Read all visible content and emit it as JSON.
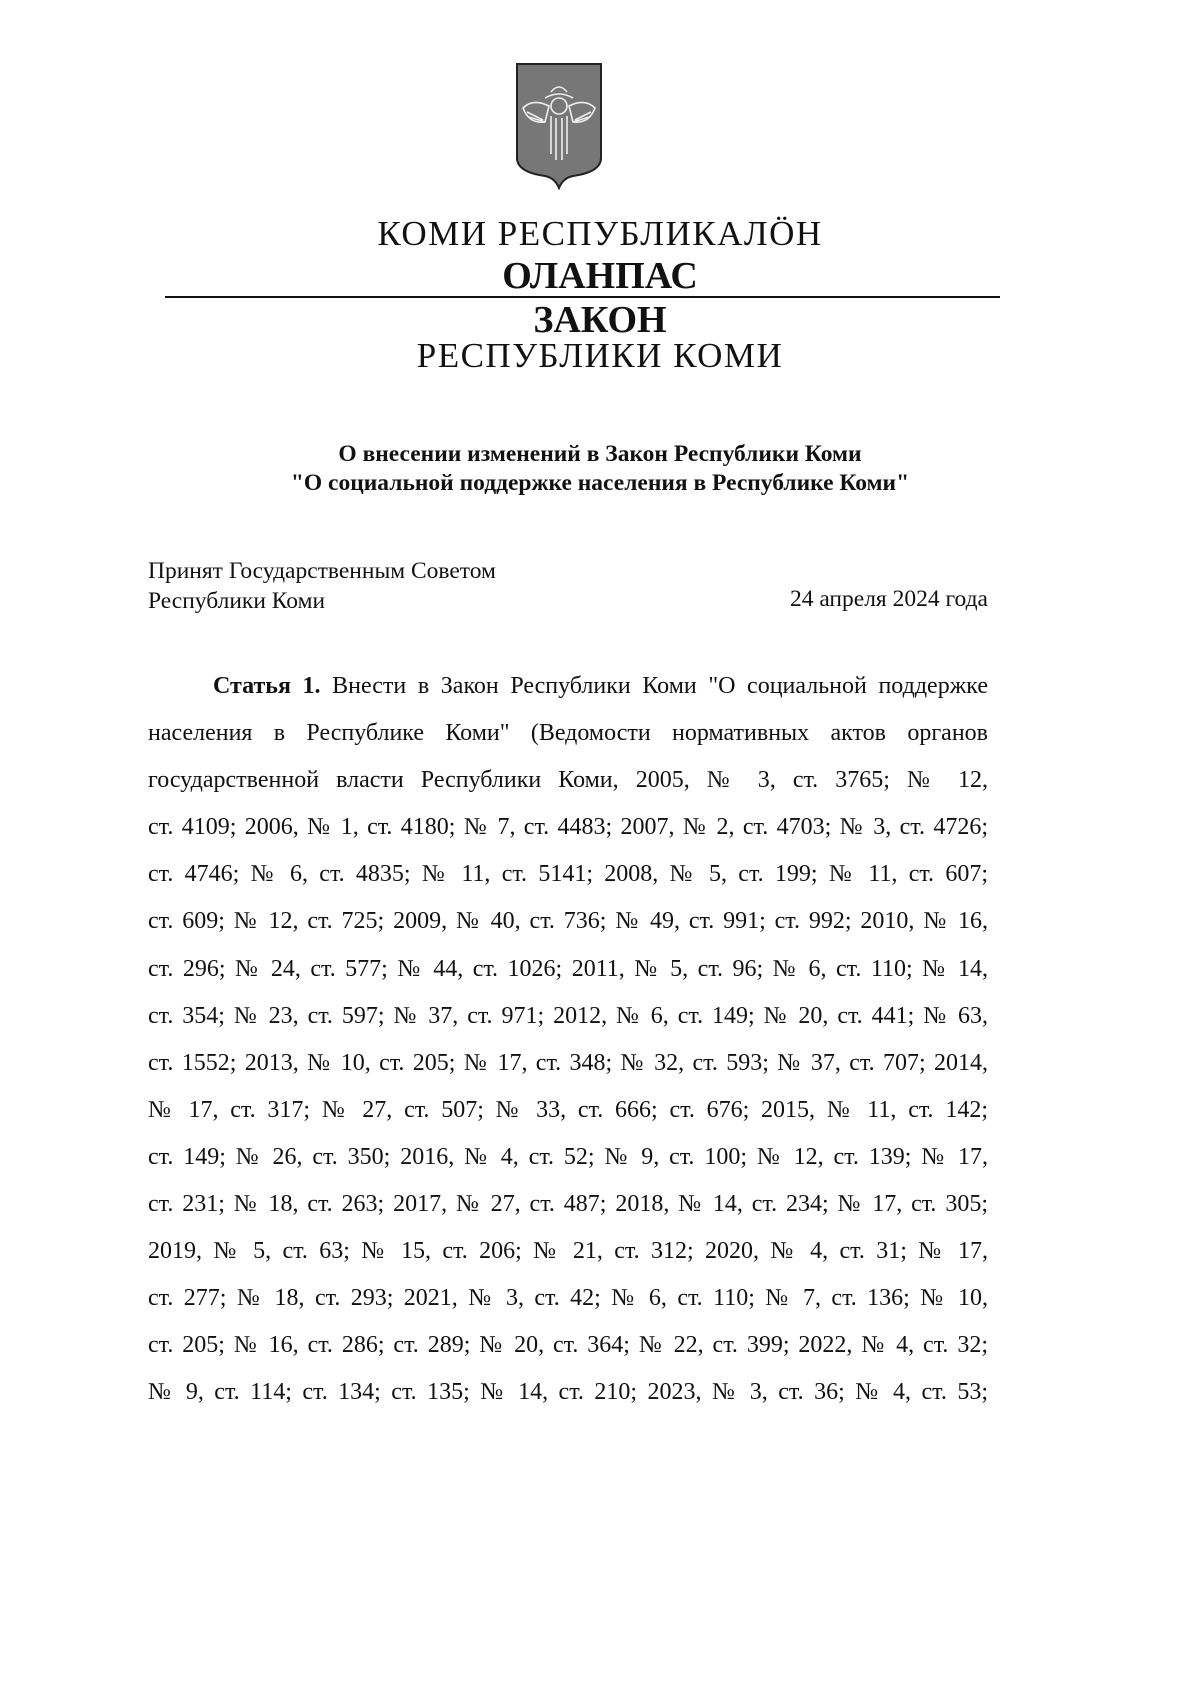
{
  "header": {
    "emblem": "coat-of-arms-komi",
    "komi_line": "КОМИ РЕСПУБЛИКАЛÖН",
    "komi_type": "ОЛАНПАС",
    "ru_type": "ЗАКОН",
    "ru_line": "РЕСПУБЛИКИ КОМИ"
  },
  "title": {
    "line1": "О внесении изменений в Закон Республики Коми",
    "line2": "\"О социальной поддержке населения в Республике Коми\""
  },
  "adoption": {
    "line1": "Принят Государственным Советом",
    "line2": "Республики Коми",
    "date": "24 апреля 2024 года"
  },
  "article": {
    "label": "Статья 1.",
    "lines": [
      "Внести в Закон Республики Коми \"О социальной поддержке",
      "населения в Республике Коми\" (Ведомости нормативных актов органов",
      "государственной власти Республики Коми, 2005, № 3, ст. 3765; № 12,",
      "ст. 4109; 2006, № 1, ст. 4180; № 7, ст. 4483; 2007, № 2, ст. 4703; № 3, ст. 4726;",
      "ст. 4746; № 6, ст. 4835; № 11, ст. 5141; 2008, № 5, ст. 199; № 11, ст. 607;",
      "ст. 609; № 12, ст. 725; 2009, № 40, ст. 736; № 49, ст. 991; ст. 992; 2010, № 16,",
      "ст. 296; № 24, ст. 577; № 44, ст. 1026; 2011, № 5, ст. 96; № 6, ст. 110; № 14,",
      "ст. 354; № 23, ст. 597; № 37, ст. 971; 2012, № 6, ст. 149; № 20, ст. 441; № 63,",
      "ст. 1552; 2013, № 10, ст. 205; № 17, ст. 348; № 32, ст. 593; № 37, ст. 707; 2014,",
      "№ 17, ст. 317; № 27, ст. 507; № 33, ст. 666; ст. 676; 2015, № 11, ст. 142;",
      "ст. 149; № 26, ст. 350; 2016, № 4, ст. 52; № 9, ст. 100; № 12, ст. 139; № 17,",
      "ст. 231; № 18, ст. 263; 2017, № 27, ст. 487; 2018, № 14, ст. 234; № 17, ст. 305;",
      "2019, № 5, ст. 63; № 15, ст. 206; № 21, ст. 312; 2020, № 4, ст. 31; № 17,",
      "ст. 277; № 18, ст. 293; 2021, № 3, ст. 42; № 6, ст. 110; № 7, ст. 136; № 10,",
      "ст. 205; № 16, ст. 286; ст. 289; № 20, ст. 364; № 22, ст. 399; 2022, № 4, ст. 32;",
      "№ 9, ст. 114; ст. 134; ст. 135; № 14, ст. 210; 2023, № 3, ст. 36; № 4, ст. 53;"
    ]
  }
}
